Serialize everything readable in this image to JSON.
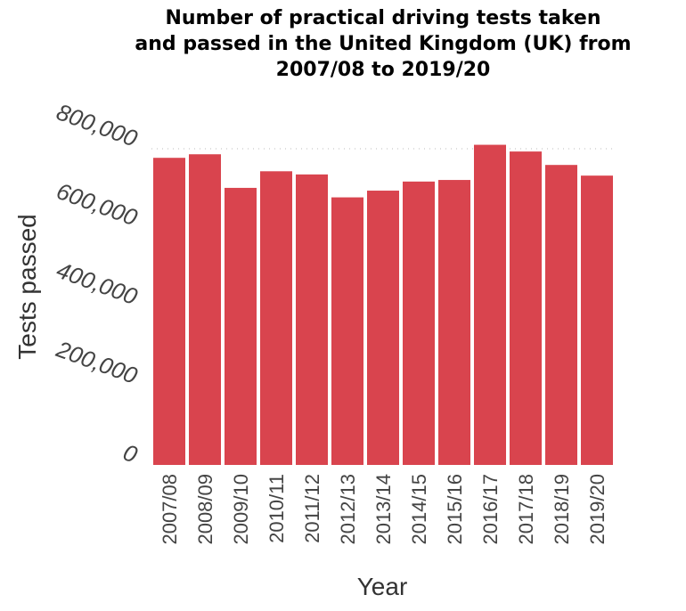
{
  "chart_data": {
    "type": "bar",
    "title_lines": [
      "Number of practical driving tests taken",
      "and passed in the United Kingdom (UK) from",
      "2007/08 to 2019/20"
    ],
    "xlabel": "Year",
    "ylabel": "Tests passed",
    "categories": [
      "2007/08",
      "2008/09",
      "2009/10",
      "2010/11",
      "2011/12",
      "2012/13",
      "2013/14",
      "2014/15",
      "2015/16",
      "2016/17",
      "2017/18",
      "2018/19",
      "2019/20"
    ],
    "values": [
      777000,
      786000,
      701000,
      743000,
      735000,
      677000,
      694000,
      717000,
      721000,
      810000,
      793000,
      759000,
      732000
    ],
    "ylim": [
      0,
      800000
    ],
    "yticks": [
      0,
      200000,
      400000,
      600000,
      800000
    ],
    "ytick_labels": [
      "0",
      "200,000",
      "400,000",
      "600,000",
      "800,000"
    ],
    "bar_color": "#d9444e",
    "grid": "dotted line at top tick only",
    "legend": "none"
  }
}
